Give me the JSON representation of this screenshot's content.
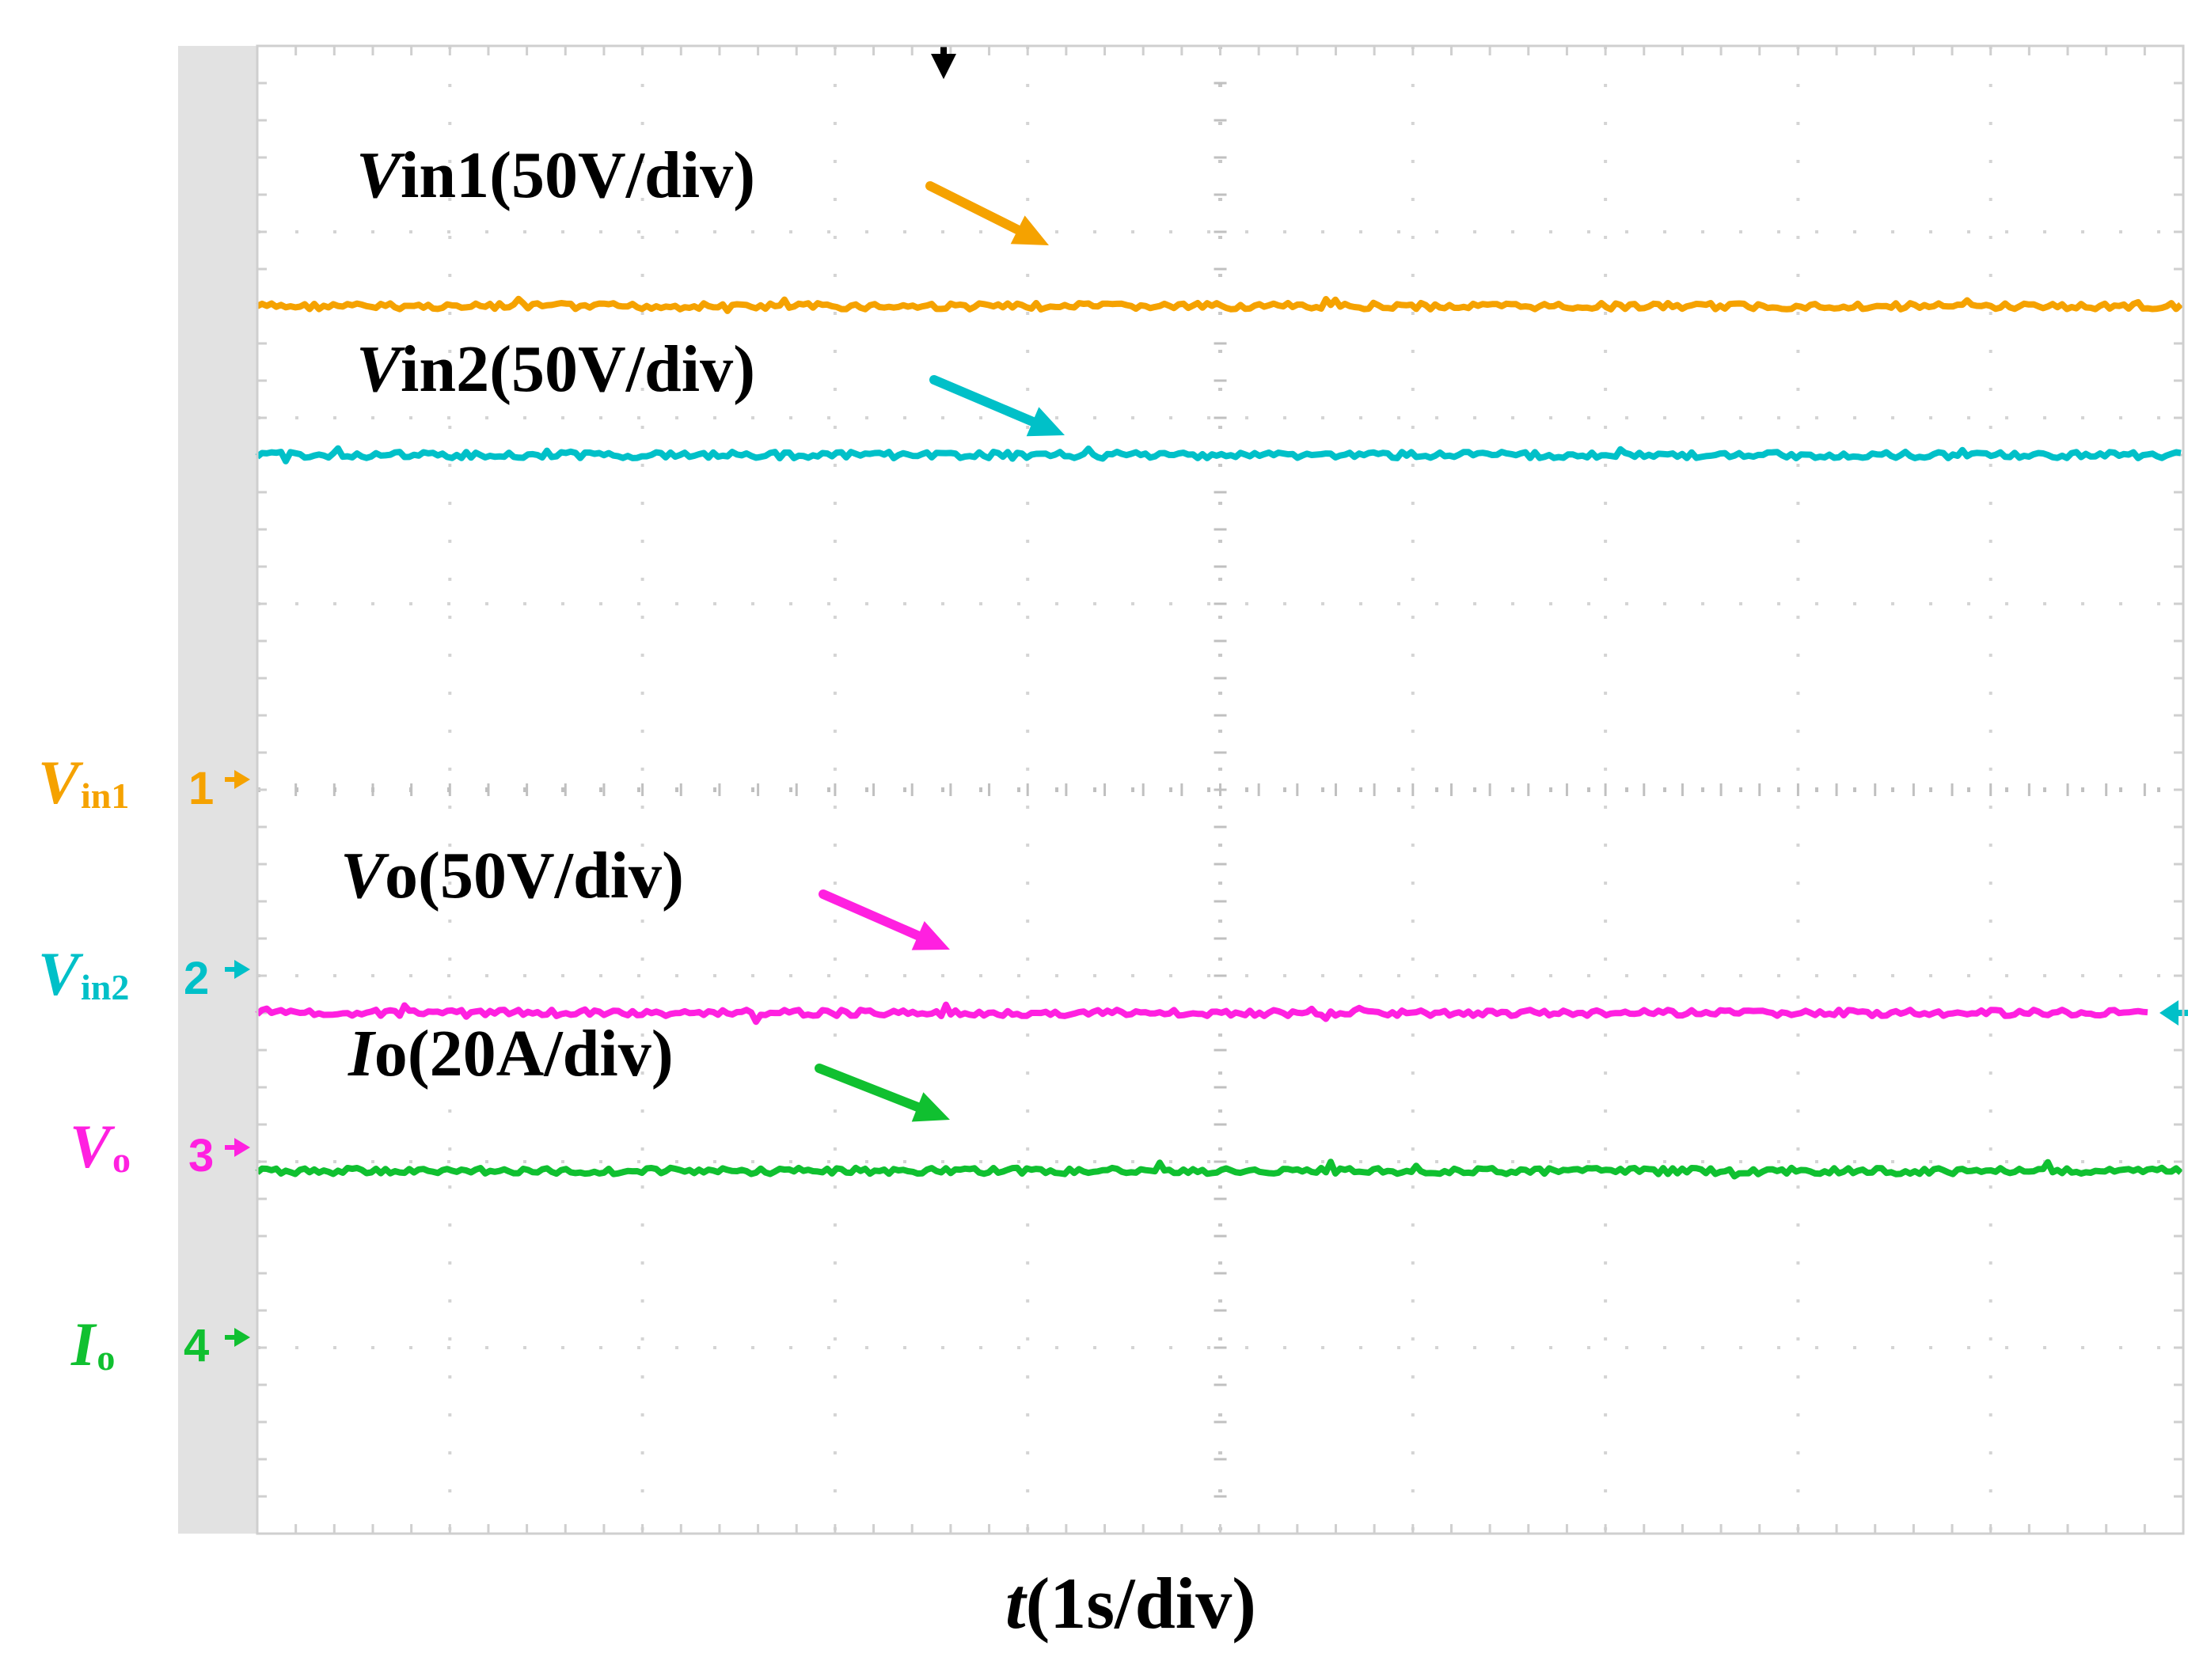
{
  "chart_data": {
    "type": "line",
    "xlabel_var": "t",
    "xlabel_unit": "(1s/div)",
    "x_divisions": 10,
    "y_divisions": 8,
    "series": [
      {
        "key": "vin1",
        "level_div": 6.6,
        "color": "#f5a200",
        "label_var": "V",
        "label_rest": "in1(50V/div)",
        "channel_var": "V",
        "channel_sub": "in1",
        "channel_num": "1"
      },
      {
        "key": "vin2",
        "level_div": 5.8,
        "color": "#00c0c8",
        "label_var": "V",
        "label_rest": "in2(50V/div)",
        "channel_var": "V",
        "channel_sub": "in2",
        "channel_num": "2"
      },
      {
        "key": "vo",
        "level_div": 2.8,
        "color": "#ff20e0",
        "label_var": "V",
        "label_rest": "o(50V/div)",
        "channel_var": "V",
        "channel_sub": "o",
        "channel_num": "3"
      },
      {
        "key": "io",
        "level_div": 1.95,
        "color": "#10c030",
        "label_var": "I",
        "label_rest": "o(20A/div)",
        "channel_var": "I",
        "channel_sub": "o",
        "channel_num": "4"
      }
    ]
  }
}
